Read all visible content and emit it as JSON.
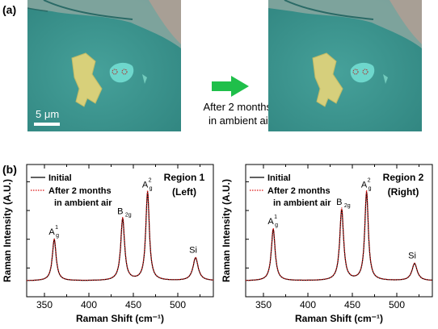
{
  "panel_a": {
    "label": "(a)",
    "scale_bar_label": "5 μm",
    "arrow_caption_line1": "After 2 months",
    "arrow_caption_line2": "in ambient air",
    "colors": {
      "substrate": "#3d9690",
      "flake": "#d8d07a",
      "arrow": "#1fbf4a"
    }
  },
  "panel_b": {
    "label": "(b)"
  },
  "chart_data": [
    {
      "type": "line",
      "region_title": "Region 1",
      "region_subtitle": "(Left)",
      "xlabel": "Raman Shift (cm⁻¹)",
      "ylabel": "Raman Intensity (A.U.)",
      "xlim": [
        330,
        540
      ],
      "xticks": [
        "350",
        "400",
        "450",
        "500"
      ],
      "legend": [
        "Initial",
        "After 2 months",
        "in ambient air"
      ],
      "legend_position": "top-left",
      "series": [
        {
          "name": "Initial",
          "color": "#000000",
          "style": "solid"
        },
        {
          "name": "After 2 months in ambient air",
          "color": "#dd1111",
          "style": "dotted"
        }
      ],
      "peaks": [
        {
          "label": "A",
          "sub": "g",
          "sup": "1",
          "x": 361,
          "height": 0.36
        },
        {
          "label": "B",
          "sub": "2g",
          "sup": "",
          "x": 438,
          "height": 0.54
        },
        {
          "label": "A",
          "sub": "g",
          "sup": "2",
          "x": 466,
          "height": 0.77
        },
        {
          "label": "Si",
          "sub": "",
          "sup": "",
          "x": 520,
          "height": 0.2
        }
      ]
    },
    {
      "type": "line",
      "region_title": "Region 2",
      "region_subtitle": "(Right)",
      "xlabel": "Raman Shift (cm⁻¹)",
      "ylabel": "Raman Intensity (A.U.)",
      "xlim": [
        330,
        540
      ],
      "xticks": [
        "350",
        "400",
        "450",
        "500"
      ],
      "legend": [
        "Initial",
        "After 2 months",
        "in ambient air"
      ],
      "legend_position": "top-left",
      "series": [
        {
          "name": "Initial",
          "color": "#000000",
          "style": "solid"
        },
        {
          "name": "After 2 months in ambient air",
          "color": "#dd1111",
          "style": "dotted"
        }
      ],
      "peaks": [
        {
          "label": "A",
          "sub": "g",
          "sup": "1",
          "x": 361,
          "height": 0.45
        },
        {
          "label": "B",
          "sub": "2g",
          "sup": "",
          "x": 438,
          "height": 0.62
        },
        {
          "label": "A",
          "sub": "g",
          "sup": "2",
          "x": 466,
          "height": 0.77
        },
        {
          "label": "Si",
          "sub": "",
          "sup": "",
          "x": 520,
          "height": 0.15
        }
      ]
    }
  ]
}
